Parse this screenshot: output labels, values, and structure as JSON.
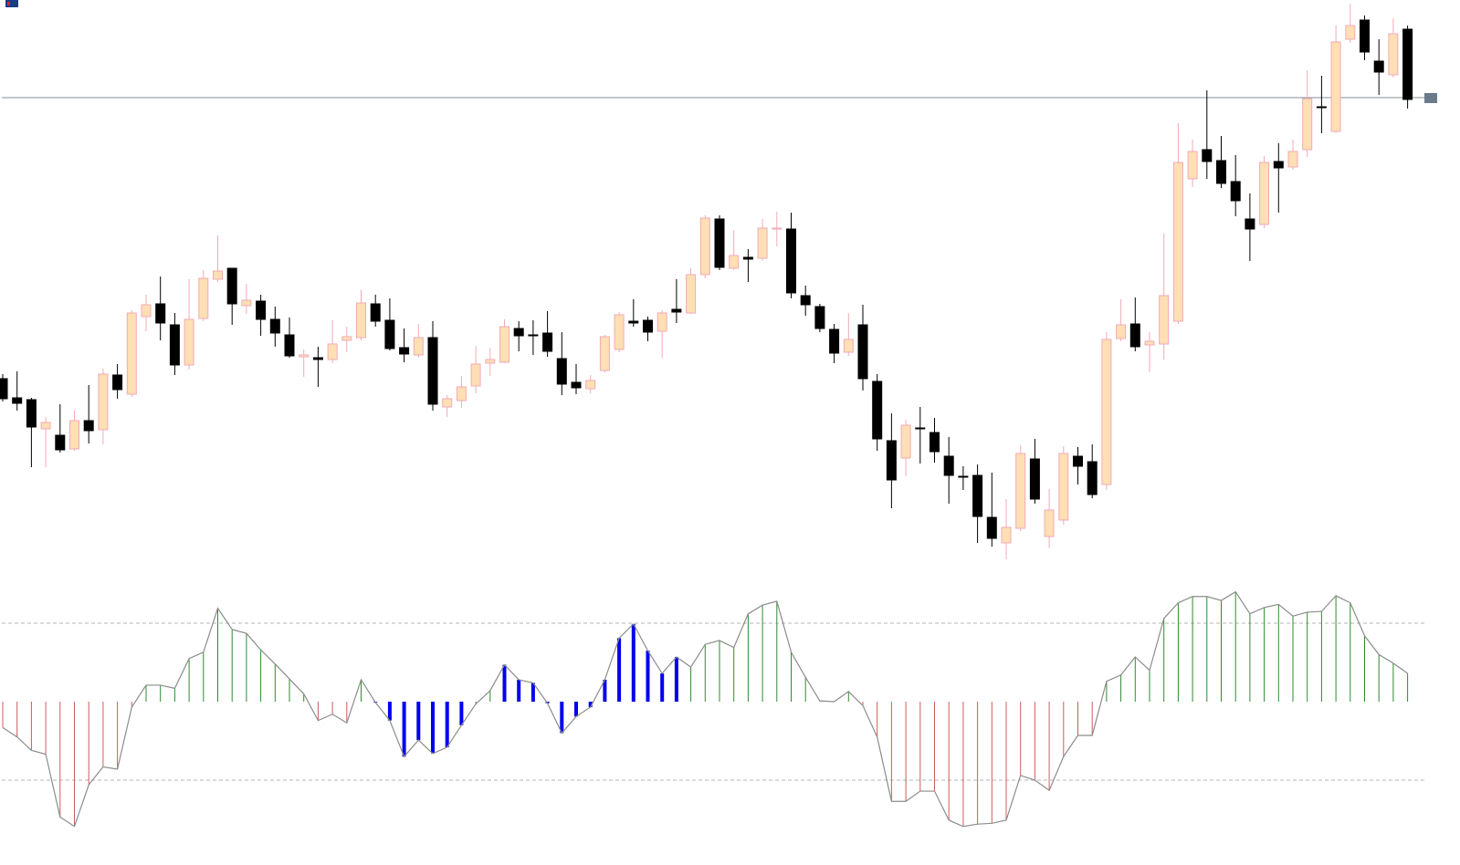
{
  "chart_data": [
    {
      "type": "candlestick",
      "ylim": [
        0,
        620
      ],
      "hline": 513,
      "hline_color": "#8a8f96",
      "bull_fill": "#ffdfb3",
      "bull_stroke": "#f2aab8",
      "bear_fill": "#000000",
      "bear_stroke": "#000000",
      "open": [
        205,
        184,
        182,
        150,
        143,
        128,
        159,
        149,
        209,
        188,
        273,
        287,
        264,
        220,
        271,
        314,
        326,
        285,
        290,
        270,
        253,
        229,
        228,
        226,
        247,
        250,
        287,
        269,
        239,
        231,
        250,
        174,
        181,
        197,
        222,
        223,
        260,
        253,
        255,
        227,
        201,
        194,
        214,
        237,
        268,
        269,
        257,
        281,
        277,
        319,
        380,
        326,
        338,
        337,
        369,
        369,
        296,
        284,
        259,
        234,
        264,
        202,
        137,
        118,
        151,
        146,
        120,
        98,
        99,
        53,
        25,
        41,
        117,
        32,
        50,
        120,
        114,
        89,
        249,
        265,
        242,
        243,
        268,
        424,
        456,
        444,
        421,
        380,
        374,
        443,
        437,
        456,
        503,
        476,
        577,
        598,
        553,
        538,
        588
      ],
      "high": [
        210,
        213,
        184,
        163,
        177,
        170,
        198,
        216,
        221,
        280,
        297,
        317,
        277,
        314,
        324,
        362,
        326,
        309,
        297,
        284,
        272,
        237,
        240,
        269,
        262,
        302,
        297,
        293,
        260,
        265,
        268,
        187,
        208,
        241,
        239,
        270,
        268,
        269,
        279,
        256,
        221,
        209,
        253,
        278,
        292,
        273,
        280,
        314,
        326,
        384,
        384,
        368,
        347,
        380,
        388,
        387,
        307,
        287,
        265,
        277,
        286,
        210,
        167,
        160,
        174,
        162,
        141,
        109,
        111,
        102,
        73,
        132,
        139,
        84,
        131,
        130,
        133,
        256,
        292,
        294,
        256,
        364,
        485,
        467,
        521,
        471,
        450,
        408,
        449,
        463,
        467,
        543,
        537,
        592,
        616,
        603,
        577,
        600,
        592
      ],
      "low": [
        180,
        170,
        108,
        108,
        124,
        126,
        134,
        133,
        183,
        185,
        257,
        247,
        209,
        215,
        268,
        311,
        264,
        276,
        252,
        240,
        228,
        207,
        196,
        222,
        234,
        247,
        262,
        236,
        223,
        228,
        170,
        163,
        173,
        189,
        208,
        222,
        235,
        231,
        229,
        187,
        188,
        189,
        212,
        234,
        262,
        246,
        228,
        266,
        276,
        315,
        324,
        324,
        311,
        334,
        350,
        293,
        274,
        256,
        222,
        230,
        192,
        126,
        63,
        98,
        112,
        113,
        68,
        83,
        25,
        21,
        7,
        38,
        68,
        19,
        45,
        89,
        74,
        83,
        246,
        235,
        212,
        226,
        265,
        415,
        424,
        414,
        383,
        334,
        370,
        387,
        434,
        448,
        474,
        474,
        573,
        554,
        516,
        535,
        501
      ],
      "close": [
        183,
        178,
        152,
        157,
        127,
        159,
        148,
        210,
        193,
        277,
        286,
        266,
        220,
        270,
        315,
        323,
        287,
        291,
        270,
        255,
        230,
        231,
        226,
        243,
        251,
        288,
        268,
        238,
        232,
        250,
        177,
        183,
        196,
        221,
        226,
        262,
        252,
        252,
        235,
        199,
        195,
        203,
        251,
        275,
        266,
        256,
        277,
        278,
        319,
        381,
        327,
        340,
        336,
        370,
        370,
        299,
        286,
        260,
        233,
        248,
        205,
        139,
        94,
        154,
        150,
        125,
        99,
        97,
        54,
        30,
        42,
        123,
        73,
        61,
        123,
        109,
        78,
        248,
        264,
        240,
        246,
        296,
        442,
        454,
        443,
        419,
        400,
        369,
        442,
        436,
        454,
        512,
        502,
        574,
        592,
        563,
        541,
        583,
        511
      ]
    },
    {
      "type": "histogram",
      "ylim": [
        -190,
        160
      ],
      "levels": [
        100,
        -100
      ],
      "level_color": "#b4b4b4",
      "line_color": "#8c8c8c",
      "histogram_colors": [
        "#cd5c5c",
        "#2e8b2e",
        "#0000ee"
      ],
      "values": [
        -33,
        -45,
        -62,
        -67,
        -147,
        -159,
        -106,
        -83,
        -86,
        -7,
        21,
        21,
        17,
        55,
        63,
        119,
        92,
        87,
        66,
        48,
        29,
        10,
        -24,
        -16,
        -27,
        28,
        -1,
        -24,
        -70,
        -49,
        -66,
        -58,
        -30,
        -3,
        14,
        47,
        28,
        24,
        -2,
        -40,
        -19,
        -7,
        28,
        81,
        99,
        65,
        36,
        57,
        44,
        73,
        78,
        69,
        112,
        123,
        128,
        63,
        31,
        1,
        0,
        13,
        -5,
        -45,
        -127,
        -127,
        -114,
        -114,
        -151,
        -159,
        -156,
        -155,
        -151,
        -94,
        -100,
        -113,
        -70,
        -43,
        -43,
        26,
        34,
        57,
        40,
        106,
        126,
        134,
        134,
        129,
        140,
        112,
        120,
        124,
        109,
        114,
        115,
        135,
        126,
        84,
        60,
        49,
        36
      ],
      "color_index": [
        0,
        0,
        0,
        0,
        0,
        0,
        0,
        0,
        0,
        0,
        1,
        1,
        1,
        1,
        1,
        1,
        1,
        1,
        1,
        1,
        1,
        1,
        0,
        0,
        0,
        1,
        2,
        2,
        2,
        2,
        2,
        2,
        2,
        1,
        1,
        2,
        2,
        2,
        2,
        2,
        2,
        2,
        2,
        2,
        2,
        2,
        2,
        2,
        1,
        1,
        1,
        1,
        1,
        1,
        1,
        1,
        1,
        1,
        1,
        1,
        0,
        0,
        0,
        0,
        0,
        0,
        0,
        0,
        0,
        0,
        0,
        0,
        0,
        0,
        0,
        0,
        0,
        1,
        1,
        1,
        1,
        1,
        1,
        1,
        1,
        1,
        1,
        1,
        1,
        1,
        1,
        1,
        1,
        1,
        1,
        1,
        1,
        1,
        1
      ]
    }
  ]
}
